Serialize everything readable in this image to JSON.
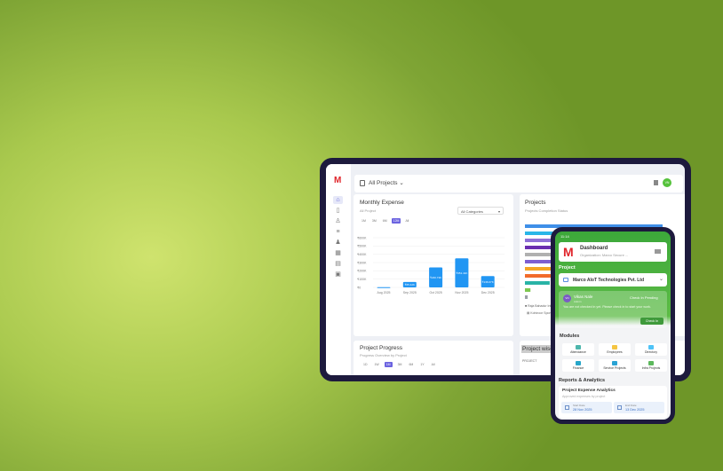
{
  "tablet": {
    "logo": "M",
    "sidebar_icons": [
      "home-icon",
      "document-icon",
      "user-icon",
      "list-icon",
      "team-icon",
      "calendar-icon",
      "file-icon",
      "box-icon"
    ],
    "header": {
      "project_selector": "All Projects",
      "avatar_initials": "VN"
    },
    "monthly_expense": {
      "title": "Monthly Expense",
      "subtitle": "All Project",
      "category_select": "All Categories",
      "ranges": [
        "1M",
        "3M",
        "6M",
        "12M",
        "All"
      ],
      "active_range": "12M"
    },
    "projects": {
      "title": "Projects",
      "subtitle": "Projects Completion Status",
      "legend": [
        "Raja Bahadur Inte...",
        "Kohinoor Sports..."
      ]
    },
    "project_progress": {
      "title": "Project Progress",
      "subtitle": "Progress Overview by Project",
      "ranges": [
        "1D",
        "1W",
        "1M",
        "3M",
        "6M",
        "1Y",
        "All"
      ]
    },
    "project_wise": {
      "title": "Project wise E...",
      "column": "PROJECT"
    }
  },
  "chart_data": {
    "type": "bar",
    "categories": [
      "Aug 2025",
      "Sep 2025",
      "Oct 2025",
      "Nov 2025",
      "Dec 2025"
    ],
    "values": [
      3000,
      65420,
      240730,
      351410,
      136070
    ],
    "value_labels": [
      "",
      "₹65.42K",
      "₹240.73K",
      "₹351.41K",
      "₹136.07K"
    ],
    "yticks": [
      "₹0",
      "₹100K",
      "₹200K",
      "₹300K",
      "₹400K",
      "₹500K",
      "₹600K"
    ],
    "ylim": [
      0,
      600000
    ],
    "color": "#2196f3",
    "grid": true
  },
  "projects_chart": {
    "type": "bar",
    "orientation": "horizontal",
    "values": [
      100,
      96,
      92,
      90,
      88,
      86,
      84,
      82,
      18,
      4,
      2
    ],
    "colors": [
      "#3f8fe8",
      "#29b6e8",
      "#8e6fd6",
      "#6a2fb0",
      "#b0b0b0",
      "#7e5fd0",
      "#f5a623",
      "#f26b2a",
      "#29b3a6",
      "#7ec850",
      "#9aa0a6"
    ]
  },
  "phone": {
    "status_time": "11:14",
    "title": "Dashboard",
    "organization": "Organization: Marco Secure ...",
    "project_label": "Project",
    "project_name": "Marco AIoT Technologies Pvt. Ltd",
    "user": {
      "initials": "VN",
      "name": "Vikas Nale",
      "role": "Admin",
      "status": "Check In Pending",
      "message": "You are not checked in yet. Please check in to start your work.",
      "button": "Check In"
    },
    "modules_title": "Modules",
    "modules": [
      {
        "label": "Attendance",
        "color": "#4db6ac"
      },
      {
        "label": "Employees",
        "color": "#f5c542"
      },
      {
        "label": "Directory",
        "color": "#4fc3f7"
      },
      {
        "label": "Finance",
        "color": "#26a6c9"
      },
      {
        "label": "Service Projects",
        "color": "#29a3d4"
      },
      {
        "label": "Infra Projects",
        "color": "#5cb85c"
      }
    ],
    "reports_title": "Reports & Analytics",
    "analytics": {
      "title": "Project Expense Analytics",
      "subtitle": "Approved expenses by project",
      "start_label": "Start Date",
      "start_value": "28 Nov 2025",
      "end_label": "End Date",
      "end_value": "13 Dec 2025"
    }
  }
}
